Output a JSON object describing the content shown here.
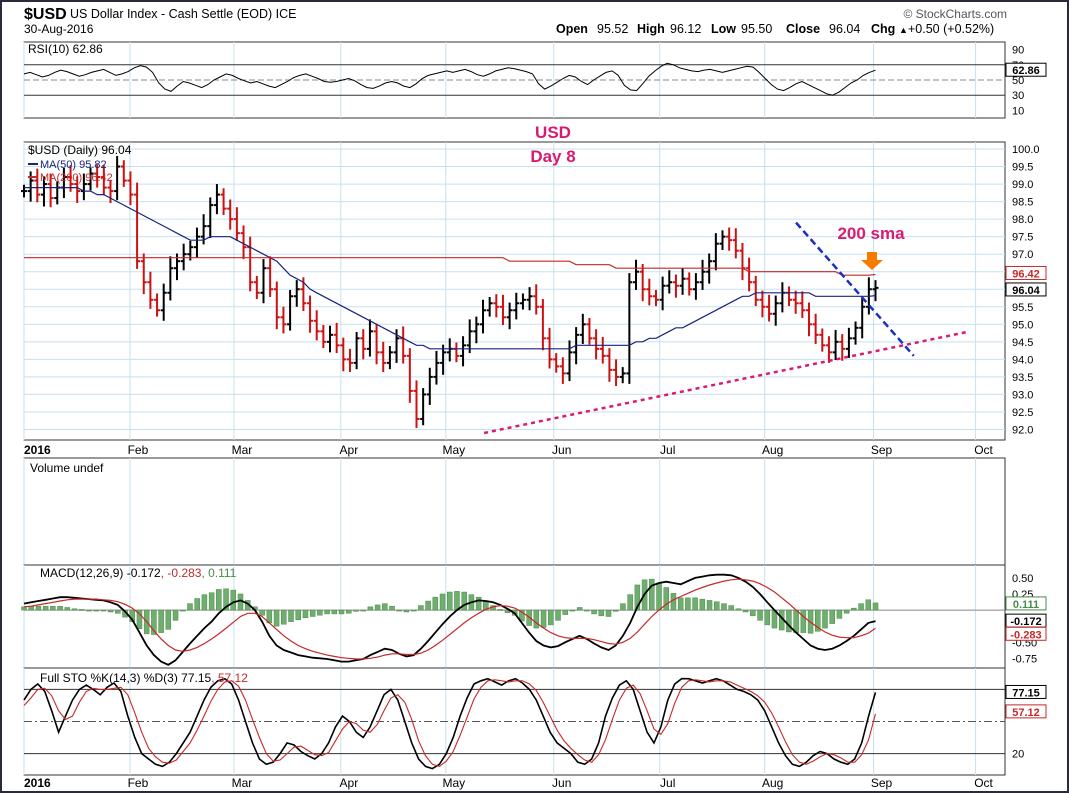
{
  "header": {
    "symbol": "$USD",
    "name": "US Dollar Index - Cash Settle (EOD) ICE",
    "date": "30-Aug-2016",
    "source": "© StockCharts.com",
    "open_label": "Open",
    "open": "95.52",
    "high_label": "High",
    "high": "96.12",
    "low_label": "Low",
    "low": "95.50",
    "close_label": "Close",
    "close": "96.04",
    "chg_label": "Chg",
    "chg": "+0.50 (+0.52%)",
    "chg_symbol": "▲"
  },
  "annotations": {
    "title_line1": "USD",
    "title_line2": "Day 8",
    "sma_note": "200 sma"
  },
  "colors": {
    "background": "#ffffff",
    "panel_bg": "#ffffff",
    "grid": "#c8e0ee",
    "frame": "#2a2a3a",
    "price_up": "#000000",
    "price_down": "#cc1111",
    "ma50": "#1a237e",
    "ma200": "#c62828",
    "annotation": "#d81b72",
    "arrow": "#f57c00",
    "trend_blue": "#1a2fc0",
    "trend_pink": "#d81b72",
    "macd_hist": "#6fae6f",
    "macd_line": "#000000",
    "signal_line": "#c62828"
  },
  "chart_data": [
    {
      "panel": "RSI",
      "type": "line",
      "title": "RSI(10) 62.86",
      "ylim": [
        0,
        100
      ],
      "tick_labels": [
        "90",
        "70",
        "50",
        "30",
        "10"
      ],
      "reference_levels": [
        70,
        30
      ],
      "last_value_label": "62.86",
      "values": [
        58,
        60,
        57,
        54,
        56,
        60,
        63,
        61,
        58,
        55,
        57,
        60,
        62,
        64,
        60,
        56,
        58,
        61,
        66,
        69,
        67,
        60,
        46,
        38,
        35,
        42,
        48,
        46,
        43,
        40,
        44,
        50,
        54,
        58,
        56,
        52,
        49,
        46,
        48,
        45,
        42,
        40,
        44,
        48,
        53,
        56,
        58,
        55,
        52,
        48,
        47,
        48,
        50,
        52,
        49,
        44,
        40,
        39,
        42,
        46,
        48,
        46,
        42,
        40,
        45,
        52,
        56,
        58,
        60,
        62,
        60,
        62,
        64,
        61,
        57,
        55,
        58,
        62,
        64,
        66,
        65,
        63,
        61,
        58,
        45,
        38,
        42,
        47,
        52,
        56,
        54,
        48,
        44,
        50,
        55,
        60,
        62,
        56,
        43,
        37,
        36,
        45,
        55,
        62,
        68,
        72,
        70,
        66,
        64,
        62,
        61,
        63,
        64,
        62,
        60,
        62,
        64,
        66,
        68,
        67,
        60,
        52,
        44,
        38,
        36,
        40,
        45,
        48,
        44,
        40,
        36,
        32,
        30,
        34,
        40,
        46,
        50,
        56,
        60,
        62.86
      ]
    },
    {
      "panel": "Price",
      "type": "ohlc",
      "title": "$USD (Daily) 96.04",
      "legend": [
        {
          "label": "MA(50) 95.82",
          "color": "#1a237e"
        },
        {
          "label": "MA(200) 96.42",
          "color": "#c62828"
        }
      ],
      "ylim": [
        91.7,
        100.2
      ],
      "tick_labels": [
        "100.0",
        "99.5",
        "99.0",
        "98.5",
        "98.0",
        "97.5",
        "97.0",
        "96.5",
        "96.0",
        "95.5",
        "95.0",
        "94.5",
        "94.0",
        "93.5",
        "93.0",
        "92.5",
        "92.0"
      ],
      "x_labels": [
        "2016",
        "Feb",
        "Mar",
        "Apr",
        "May",
        "Jun",
        "Jul",
        "Aug",
        "Sep",
        "Oct"
      ],
      "closes": [
        98.8,
        99.1,
        98.7,
        99.0,
        98.6,
        98.9,
        99.2,
        99.0,
        98.8,
        99.0,
        99.3,
        99.2,
        98.9,
        98.8,
        99.5,
        99.1,
        98.7,
        96.8,
        96.2,
        95.7,
        95.4,
        95.9,
        96.6,
        96.8,
        97.0,
        97.2,
        97.5,
        97.8,
        98.4,
        98.7,
        98.3,
        98.0,
        97.6,
        97.2,
        96.2,
        95.9,
        96.6,
        96.0,
        95.2,
        95.0,
        95.8,
        96.0,
        95.6,
        95.1,
        94.8,
        94.5,
        94.7,
        94.4,
        94.0,
        93.9,
        94.6,
        94.3,
        94.8,
        94.2,
        93.9,
        94.2,
        94.6,
        94.1,
        93.1,
        92.3,
        93.0,
        93.5,
        93.9,
        94.2,
        94.3,
        94.1,
        94.4,
        94.8,
        95.0,
        95.4,
        95.6,
        95.5,
        95.2,
        95.4,
        95.6,
        95.7,
        95.8,
        95.5,
        94.6,
        94.0,
        93.8,
        93.6,
        94.2,
        94.7,
        95.0,
        94.6,
        94.3,
        94.1,
        93.7,
        93.5,
        93.6,
        96.2,
        96.5,
        96.0,
        95.8,
        95.7,
        96.1,
        96.2,
        96.1,
        96.3,
        96.0,
        96.2,
        96.5,
        96.8,
        97.3,
        97.5,
        97.4,
        97.1,
        96.6,
        96.2,
        95.7,
        95.5,
        95.3,
        95.6,
        95.9,
        95.7,
        95.6,
        95.4,
        95.0,
        94.7,
        94.4,
        94.2,
        94.5,
        94.3,
        94.6,
        94.9,
        95.5,
        96.0,
        96.04
      ],
      "ma50": [
        98.9,
        98.9,
        98.9,
        98.9,
        98.9,
        98.9,
        98.9,
        98.9,
        98.9,
        98.8,
        98.8,
        98.7,
        98.7,
        98.6,
        98.5,
        98.4,
        98.3,
        98.2,
        98.1,
        98.0,
        97.9,
        97.8,
        97.7,
        97.6,
        97.5,
        97.4,
        97.4,
        97.4,
        97.5,
        97.5,
        97.5,
        97.5,
        97.4,
        97.3,
        97.2,
        97.1,
        97.0,
        96.9,
        96.8,
        96.6,
        96.4,
        96.3,
        96.2,
        96.0,
        95.9,
        95.8,
        95.7,
        95.6,
        95.5,
        95.4,
        95.3,
        95.2,
        95.1,
        95.0,
        94.9,
        94.8,
        94.7,
        94.6,
        94.5,
        94.4,
        94.4,
        94.3,
        94.3,
        94.3,
        94.3,
        94.3,
        94.3,
        94.3,
        94.3,
        94.3,
        94.3,
        94.3,
        94.3,
        94.3,
        94.3,
        94.3,
        94.3,
        94.3,
        94.3,
        94.3,
        94.3,
        94.3,
        94.3,
        94.4,
        94.4,
        94.4,
        94.4,
        94.4,
        94.4,
        94.4,
        94.4,
        94.4,
        94.5,
        94.5,
        94.6,
        94.6,
        94.7,
        94.8,
        94.9,
        94.9,
        95.0,
        95.1,
        95.2,
        95.3,
        95.4,
        95.5,
        95.6,
        95.7,
        95.8,
        95.8,
        95.9,
        95.9,
        95.9,
        95.9,
        95.9,
        95.9,
        95.9,
        95.9,
        95.9,
        95.8,
        95.8,
        95.8,
        95.8,
        95.8,
        95.8,
        95.8,
        95.8,
        95.8,
        95.82
      ],
      "ma200": [
        96.9,
        96.9,
        96.9,
        96.9,
        96.9,
        96.9,
        96.9,
        96.9,
        96.9,
        96.9,
        96.9,
        96.9,
        96.9,
        96.9,
        96.9,
        96.9,
        96.9,
        96.9,
        96.9,
        96.9,
        96.9,
        96.9,
        96.9,
        96.9,
        96.9,
        96.9,
        96.9,
        96.9,
        96.9,
        96.9,
        96.9,
        96.9,
        96.9,
        96.9,
        96.9,
        96.9,
        96.9,
        96.9,
        96.9,
        96.9,
        96.9,
        96.9,
        96.9,
        96.9,
        96.9,
        96.9,
        96.9,
        96.9,
        96.9,
        96.9,
        96.9,
        96.9,
        96.9,
        96.9,
        96.9,
        96.9,
        96.9,
        96.9,
        96.9,
        96.9,
        96.9,
        96.9,
        96.9,
        96.9,
        96.9,
        96.9,
        96.9,
        96.9,
        96.9,
        96.9,
        96.9,
        96.9,
        96.9,
        96.8,
        96.8,
        96.8,
        96.8,
        96.8,
        96.8,
        96.8,
        96.8,
        96.8,
        96.8,
        96.7,
        96.7,
        96.7,
        96.7,
        96.7,
        96.7,
        96.6,
        96.6,
        96.6,
        96.6,
        96.6,
        96.6,
        96.6,
        96.6,
        96.6,
        96.6,
        96.6,
        96.6,
        96.6,
        96.6,
        96.6,
        96.6,
        96.6,
        96.6,
        96.6,
        96.6,
        96.5,
        96.5,
        96.5,
        96.5,
        96.5,
        96.5,
        96.5,
        96.5,
        96.5,
        96.5,
        96.5,
        96.5,
        96.5,
        96.5,
        96.4,
        96.4,
        96.4,
        96.4,
        96.4,
        96.42
      ],
      "last_labels": [
        "96.42",
        "96.04"
      ],
      "trendlines": [
        {
          "name": "blue-dashed-downtrend",
          "from": [
            0.787,
            97.9
          ],
          "to": [
            0.907,
            94.1
          ]
        },
        {
          "name": "pink-dotted-uptrend",
          "from": [
            0.469,
            91.9
          ],
          "to": [
            1.05,
            95.3
          ]
        }
      ]
    },
    {
      "panel": "Volume",
      "type": "bar",
      "title": "Volume undef",
      "values": []
    },
    {
      "panel": "MACD",
      "type": "line",
      "title_parts": [
        "MACD(12,26,9)",
        "-0.172",
        "-0.283",
        "0.111"
      ],
      "ylim": [
        -0.9,
        0.7
      ],
      "tick_labels": [
        "0.50",
        "0.25",
        "-0.50",
        "-0.75"
      ],
      "last_labels": [
        "0.111",
        "-0.172",
        "-0.283"
      ],
      "macd": [
        0.1,
        0.12,
        0.14,
        0.16,
        0.18,
        0.2,
        0.2,
        0.19,
        0.18,
        0.17,
        0.16,
        0.15,
        0.12,
        0.08,
        -0.02,
        -0.15,
        -0.35,
        -0.55,
        -0.7,
        -0.8,
        -0.85,
        -0.78,
        -0.65,
        -0.52,
        -0.4,
        -0.28,
        -0.18,
        -0.05,
        0.05,
        0.12,
        0.15,
        0.1,
        0.0,
        -0.18,
        -0.4,
        -0.55,
        -0.62,
        -0.66,
        -0.7,
        -0.72,
        -0.74,
        -0.75,
        -0.76,
        -0.78,
        -0.8,
        -0.8,
        -0.78,
        -0.76,
        -0.7,
        -0.65,
        -0.6,
        -0.62,
        -0.68,
        -0.72,
        -0.7,
        -0.6,
        -0.48,
        -0.35,
        -0.22,
        -0.1,
        0.0,
        0.08,
        0.12,
        0.15,
        0.14,
        0.12,
        0.08,
        0.02,
        -0.05,
        -0.2,
        -0.35,
        -0.48,
        -0.55,
        -0.58,
        -0.56,
        -0.5,
        -0.45,
        -0.4,
        -0.45,
        -0.52,
        -0.58,
        -0.62,
        -0.55,
        -0.4,
        -0.2,
        0.05,
        0.25,
        0.38,
        0.42,
        0.44,
        0.42,
        0.4,
        0.45,
        0.5,
        0.52,
        0.54,
        0.55,
        0.55,
        0.54,
        0.5,
        0.44,
        0.36,
        0.25,
        0.12,
        0.0,
        -0.12,
        -0.24,
        -0.35,
        -0.45,
        -0.55,
        -0.6,
        -0.62,
        -0.6,
        -0.55,
        -0.48,
        -0.4,
        -0.3,
        -0.2,
        -0.172
      ],
      "signal": [
        0.05,
        0.06,
        0.08,
        0.1,
        0.12,
        0.14,
        0.16,
        0.17,
        0.17,
        0.17,
        0.17,
        0.16,
        0.15,
        0.13,
        0.09,
        0.03,
        -0.06,
        -0.18,
        -0.32,
        -0.45,
        -0.55,
        -0.62,
        -0.64,
        -0.62,
        -0.58,
        -0.52,
        -0.45,
        -0.37,
        -0.28,
        -0.19,
        -0.1,
        -0.05,
        -0.05,
        -0.1,
        -0.2,
        -0.3,
        -0.4,
        -0.48,
        -0.55,
        -0.6,
        -0.64,
        -0.67,
        -0.7,
        -0.72,
        -0.74,
        -0.75,
        -0.76,
        -0.76,
        -0.75,
        -0.73,
        -0.7,
        -0.68,
        -0.68,
        -0.69,
        -0.69,
        -0.67,
        -0.62,
        -0.55,
        -0.47,
        -0.38,
        -0.29,
        -0.2,
        -0.12,
        -0.05,
        0.01,
        0.05,
        0.07,
        0.06,
        0.03,
        -0.03,
        -0.11,
        -0.2,
        -0.28,
        -0.35,
        -0.4,
        -0.43,
        -0.44,
        -0.44,
        -0.44,
        -0.46,
        -0.49,
        -0.52,
        -0.53,
        -0.5,
        -0.44,
        -0.34,
        -0.22,
        -0.1,
        0.0,
        0.09,
        0.16,
        0.21,
        0.26,
        0.31,
        0.35,
        0.39,
        0.42,
        0.45,
        0.47,
        0.48,
        0.47,
        0.45,
        0.41,
        0.35,
        0.28,
        0.19,
        0.1,
        0.0,
        -0.1,
        -0.19,
        -0.27,
        -0.34,
        -0.39,
        -0.42,
        -0.43,
        -0.43,
        -0.4,
        -0.36,
        -0.283
      ]
    },
    {
      "panel": "Stochastic",
      "type": "line",
      "title_parts": [
        "Full STO %K(14,3) %D(3)",
        "77.15",
        "57.12"
      ],
      "ylim": [
        0,
        100
      ],
      "tick_labels": [
        "20"
      ],
      "reference_levels": [
        80,
        50,
        20
      ],
      "last_labels": [
        "77.15",
        "57.12"
      ],
      "k": [
        70,
        80,
        85,
        78,
        60,
        40,
        55,
        70,
        80,
        84,
        80,
        75,
        82,
        86,
        78,
        55,
        35,
        20,
        15,
        10,
        8,
        12,
        20,
        30,
        40,
        55,
        70,
        82,
        88,
        90,
        85,
        70,
        50,
        30,
        15,
        10,
        12,
        20,
        30,
        28,
        22,
        18,
        15,
        20,
        30,
        45,
        55,
        50,
        40,
        35,
        45,
        60,
        75,
        80,
        70,
        50,
        30,
        15,
        8,
        6,
        10,
        20,
        35,
        55,
        72,
        85,
        88,
        90,
        87,
        84,
        88,
        90,
        86,
        80,
        70,
        55,
        40,
        30,
        25,
        20,
        12,
        10,
        15,
        30,
        55,
        72,
        84,
        88,
        80,
        60,
        40,
        30,
        45,
        70,
        85,
        90,
        90,
        88,
        86,
        88,
        90,
        88,
        84,
        80,
        78,
        75,
        70,
        60,
        45,
        30,
        18,
        10,
        8,
        12,
        18,
        22,
        20,
        15,
        12,
        10,
        15,
        30,
        55,
        77.15
      ],
      "d": [
        65,
        72,
        80,
        81,
        74,
        60,
        52,
        55,
        68,
        78,
        81,
        80,
        80,
        81,
        82,
        75,
        58,
        40,
        25,
        17,
        12,
        11,
        14,
        22,
        30,
        42,
        55,
        69,
        80,
        87,
        88,
        83,
        70,
        52,
        35,
        20,
        13,
        14,
        20,
        26,
        27,
        23,
        19,
        18,
        21,
        32,
        43,
        50,
        48,
        42,
        40,
        47,
        60,
        72,
        75,
        68,
        52,
        32,
        18,
        10,
        8,
        13,
        22,
        37,
        54,
        71,
        82,
        88,
        89,
        88,
        87,
        88,
        88,
        85,
        79,
        68,
        55,
        42,
        32,
        25,
        19,
        14,
        12,
        19,
        33,
        52,
        70,
        81,
        84,
        76,
        60,
        43,
        38,
        48,
        67,
        82,
        88,
        89,
        88,
        87,
        88,
        88,
        87,
        84,
        81,
        78,
        74,
        68,
        58,
        45,
        31,
        19,
        12,
        10,
        13,
        17,
        20,
        19,
        16,
        12,
        12,
        19,
        33,
        57.12
      ]
    }
  ]
}
